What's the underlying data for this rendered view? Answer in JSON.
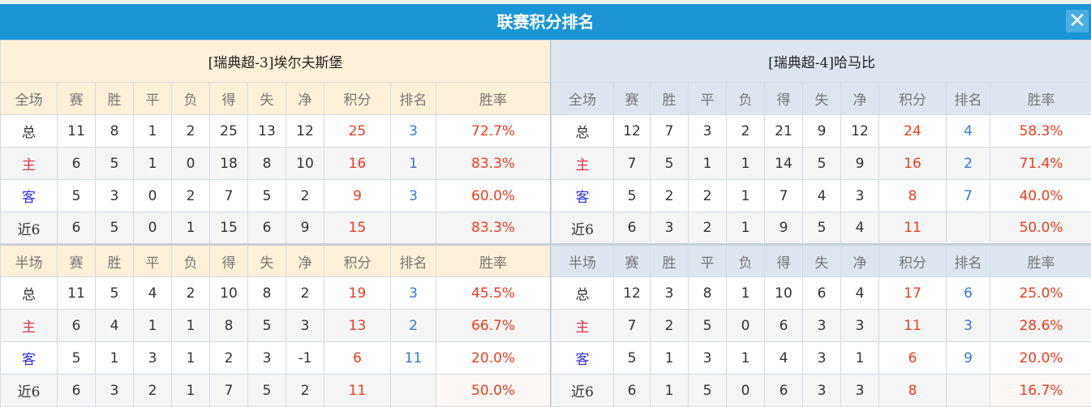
{
  "title": "联赛积分排名",
  "close_icon": "close-x-icon",
  "colors": {
    "title_bar": "#1a96d4",
    "home_header": "#fcf0d8",
    "away_header": "#dde6ef",
    "points": "#f03c1e",
    "rank": "#3a78c8"
  },
  "teams": [
    {
      "name": "[瑞典超-3]埃尔夫斯堡",
      "sections": [
        {
          "headers": [
            "全场",
            "赛",
            "胜",
            "平",
            "负",
            "得",
            "失",
            "净",
            "积分",
            "排名",
            "胜率"
          ],
          "rows": [
            [
              "总",
              "11",
              "8",
              "1",
              "2",
              "25",
              "13",
              "12",
              "25",
              "3",
              "72.7%"
            ],
            [
              "主",
              "6",
              "5",
              "1",
              "0",
              "18",
              "8",
              "10",
              "16",
              "1",
              "83.3%"
            ],
            [
              "客",
              "5",
              "3",
              "0",
              "2",
              "7",
              "5",
              "2",
              "9",
              "3",
              "60.0%"
            ],
            [
              "近6",
              "6",
              "5",
              "0",
              "1",
              "15",
              "6",
              "9",
              "15",
              "",
              "83.3%"
            ]
          ]
        },
        {
          "headers": [
            "半场",
            "赛",
            "胜",
            "平",
            "负",
            "得",
            "失",
            "净",
            "积分",
            "排名",
            "胜率"
          ],
          "rows": [
            [
              "总",
              "11",
              "5",
              "4",
              "2",
              "10",
              "8",
              "2",
              "19",
              "3",
              "45.5%"
            ],
            [
              "主",
              "6",
              "4",
              "1",
              "1",
              "8",
              "5",
              "3",
              "13",
              "2",
              "66.7%"
            ],
            [
              "客",
              "5",
              "1",
              "3",
              "1",
              "2",
              "3",
              "-1",
              "6",
              "11",
              "20.0%"
            ],
            [
              "近6",
              "6",
              "3",
              "2",
              "1",
              "7",
              "5",
              "2",
              "11",
              "",
              "50.0%"
            ]
          ]
        }
      ]
    },
    {
      "name": "[瑞典超-4]哈马比",
      "sections": [
        {
          "headers": [
            "全场",
            "赛",
            "胜",
            "平",
            "负",
            "得",
            "失",
            "净",
            "积分",
            "排名",
            "胜率"
          ],
          "rows": [
            [
              "总",
              "12",
              "7",
              "3",
              "2",
              "21",
              "9",
              "12",
              "24",
              "4",
              "58.3%"
            ],
            [
              "主",
              "7",
              "5",
              "1",
              "1",
              "14",
              "5",
              "9",
              "16",
              "2",
              "71.4%"
            ],
            [
              "客",
              "5",
              "2",
              "2",
              "1",
              "7",
              "4",
              "3",
              "8",
              "7",
              "40.0%"
            ],
            [
              "近6",
              "6",
              "3",
              "2",
              "1",
              "9",
              "5",
              "4",
              "11",
              "",
              "50.0%"
            ]
          ]
        },
        {
          "headers": [
            "半场",
            "赛",
            "胜",
            "平",
            "负",
            "得",
            "失",
            "净",
            "积分",
            "排名",
            "胜率"
          ],
          "rows": [
            [
              "总",
              "12",
              "3",
              "8",
              "1",
              "10",
              "6",
              "4",
              "17",
              "6",
              "25.0%"
            ],
            [
              "主",
              "7",
              "2",
              "5",
              "0",
              "6",
              "3",
              "3",
              "11",
              "3",
              "28.6%"
            ],
            [
              "客",
              "5",
              "1",
              "3",
              "1",
              "4",
              "3",
              "1",
              "6",
              "9",
              "20.0%"
            ],
            [
              "近6",
              "6",
              "1",
              "5",
              "0",
              "6",
              "3",
              "3",
              "8",
              "",
              "16.7%"
            ]
          ]
        }
      ]
    }
  ]
}
